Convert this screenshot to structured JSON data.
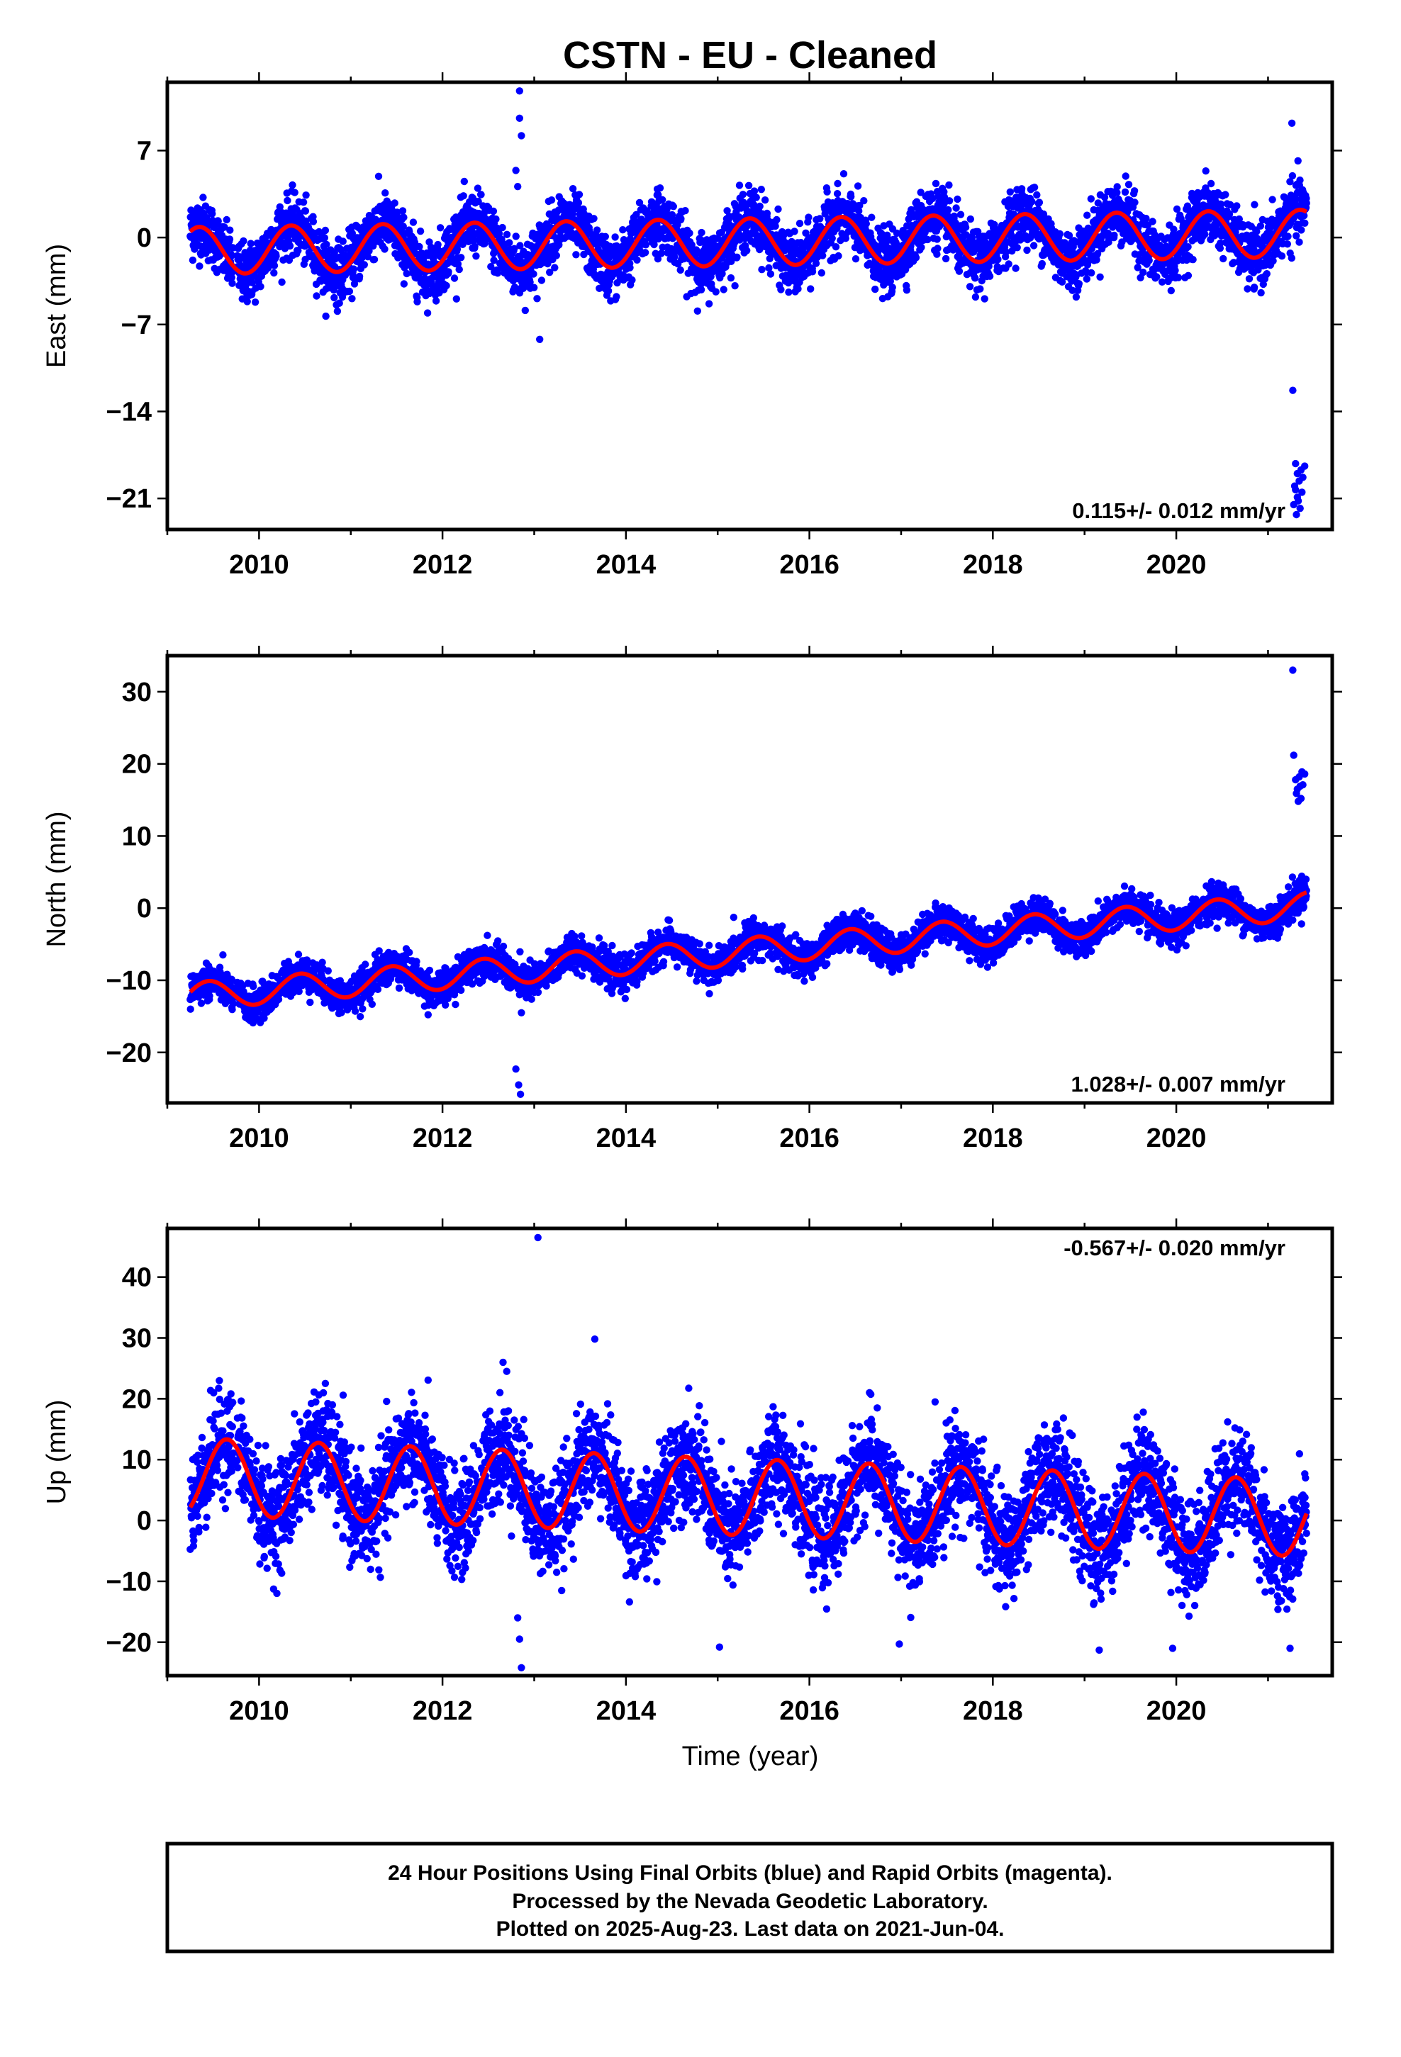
{
  "title": "CSTN  - EU - Cleaned",
  "xlabel": "Time (year)",
  "footer": {
    "line1": "24 Hour Positions Using Final Orbits (blue) and Rapid Orbits (magenta).",
    "line2": "Processed by the Nevada Geodetic Laboratory.",
    "line3": "Plotted on 2025-Aug-23. Last data on 2021-Jun-04."
  },
  "colors": {
    "points": "#0000ff",
    "fit": "#ff0000",
    "frame": "#000000"
  },
  "chart_data": [
    {
      "type": "scatter",
      "panel": "east",
      "ylabel": "East (mm)",
      "rate_label": "0.115+/- 0.012 mm/yr",
      "xlim": [
        2009.0,
        2021.7
      ],
      "ylim": [
        -23.5,
        12.5
      ],
      "xticks": [
        2010,
        2012,
        2014,
        2016,
        2018,
        2020
      ],
      "yticks": [
        7,
        0,
        -7,
        -14,
        -21
      ],
      "ytick_labels": [
        "7",
        "0",
        "−7",
        "−14",
        "−21"
      ],
      "data_start": 2009.25,
      "data_end": 2021.42,
      "fit": {
        "rate_mm_per_yr": 0.115,
        "amplitude_mm": 1.9,
        "phase_year": 2010.1,
        "offset_mm": -0.4
      },
      "noise_mm": 1.2,
      "outliers": [
        {
          "x": 2012.84,
          "y": 11.8
        },
        {
          "x": 2012.84,
          "y": 9.6
        },
        {
          "x": 2012.86,
          "y": 8.2
        },
        {
          "x": 2012.8,
          "y": 5.4
        },
        {
          "x": 2012.82,
          "y": 4.1
        },
        {
          "x": 2013.06,
          "y": -8.2
        },
        {
          "x": 2021.27,
          "y": -12.3
        },
        {
          "x": 2021.26,
          "y": 9.2
        },
        {
          "x": 2021.3,
          "y": -18.2
        },
        {
          "x": 2021.32,
          "y": -19.0
        },
        {
          "x": 2021.34,
          "y": -19.6
        },
        {
          "x": 2021.3,
          "y": -20.3
        },
        {
          "x": 2021.32,
          "y": -20.9
        },
        {
          "x": 2021.28,
          "y": -21.5
        },
        {
          "x": 2021.35,
          "y": -21.8
        },
        {
          "x": 2021.31,
          "y": -22.3
        },
        {
          "x": 2021.36,
          "y": -18.7
        },
        {
          "x": 2021.38,
          "y": -19.3
        },
        {
          "x": 2021.4,
          "y": -18.4
        },
        {
          "x": 2021.29,
          "y": -20.0
        },
        {
          "x": 2021.33,
          "y": -21.2
        },
        {
          "x": 2021.37,
          "y": -20.5
        }
      ]
    },
    {
      "type": "scatter",
      "panel": "north",
      "ylabel": "North (mm)",
      "rate_label": "1.028+/- 0.007 mm/yr",
      "xlim": [
        2009.0,
        2021.7
      ],
      "ylim": [
        -27,
        35
      ],
      "xticks": [
        2010,
        2012,
        2014,
        2016,
        2018,
        2020
      ],
      "yticks": [
        30,
        20,
        10,
        0,
        -10,
        -20
      ],
      "ytick_labels": [
        "30",
        "20",
        "10",
        "0",
        "−10",
        "−20"
      ],
      "data_start": 2009.25,
      "data_end": 2021.42,
      "fit": {
        "rate_mm_per_yr": 1.028,
        "amplitude_mm": 1.9,
        "phase_year": 2010.2,
        "offset_mm": -6.3
      },
      "noise_mm": 1.2,
      "outliers": [
        {
          "x": 2012.82,
          "y": -8.5
        },
        {
          "x": 2012.84,
          "y": -12.0
        },
        {
          "x": 2012.86,
          "y": -14.5
        },
        {
          "x": 2012.8,
          "y": -22.3
        },
        {
          "x": 2012.83,
          "y": -24.5
        },
        {
          "x": 2012.85,
          "y": -25.8
        },
        {
          "x": 2013.86,
          "y": -8.3
        },
        {
          "x": 2015.6,
          "y": -7.0
        },
        {
          "x": 2015.58,
          "y": -4.8
        },
        {
          "x": 2021.27,
          "y": 33.0
        },
        {
          "x": 2021.28,
          "y": 21.2
        },
        {
          "x": 2021.3,
          "y": 17.8
        },
        {
          "x": 2021.32,
          "y": 16.5
        },
        {
          "x": 2021.34,
          "y": 18.2
        },
        {
          "x": 2021.36,
          "y": 15.2
        },
        {
          "x": 2021.33,
          "y": 14.8
        },
        {
          "x": 2021.38,
          "y": 17.1
        },
        {
          "x": 2021.4,
          "y": 18.6
        },
        {
          "x": 2021.31,
          "y": 15.9
        },
        {
          "x": 2021.35,
          "y": 16.9
        },
        {
          "x": 2021.37,
          "y": 18.9
        }
      ]
    },
    {
      "type": "scatter",
      "panel": "up",
      "ylabel": "Up (mm)",
      "rate_label": "-0.567+/- 0.020 mm/yr",
      "xlim": [
        2009.0,
        2021.7
      ],
      "ylim": [
        -25.5,
        48
      ],
      "xticks": [
        2010,
        2012,
        2014,
        2016,
        2018,
        2020
      ],
      "yticks": [
        40,
        30,
        20,
        10,
        0,
        -10,
        -20
      ],
      "ytick_labels": [
        "40",
        "30",
        "20",
        "10",
        "0",
        "−10",
        "−20"
      ],
      "data_start": 2009.25,
      "data_end": 2021.42,
      "fit": {
        "rate_mm_per_yr": -0.567,
        "amplitude_mm": 6.3,
        "phase_year": 2009.4,
        "offset_mm": 4.0
      },
      "noise_mm": 4.2,
      "outliers": [
        {
          "x": 2013.04,
          "y": 46.5
        },
        {
          "x": 2013.66,
          "y": 29.8
        },
        {
          "x": 2012.66,
          "y": 26.0
        },
        {
          "x": 2012.7,
          "y": 24.5
        },
        {
          "x": 2012.86,
          "y": -24.2
        },
        {
          "x": 2012.84,
          "y": -19.5
        },
        {
          "x": 2012.82,
          "y": -16.0
        },
        {
          "x": 2015.02,
          "y": -20.8
        },
        {
          "x": 2016.98,
          "y": -20.3
        },
        {
          "x": 2019.16,
          "y": -21.3
        },
        {
          "x": 2019.96,
          "y": -21.0
        },
        {
          "x": 2021.24,
          "y": -21.0
        },
        {
          "x": 2016.74,
          "y": 18.5
        },
        {
          "x": 2019.64,
          "y": 17.8
        },
        {
          "x": 2020.56,
          "y": 16.2
        },
        {
          "x": 2010.8,
          "y": 19.0
        }
      ]
    }
  ]
}
